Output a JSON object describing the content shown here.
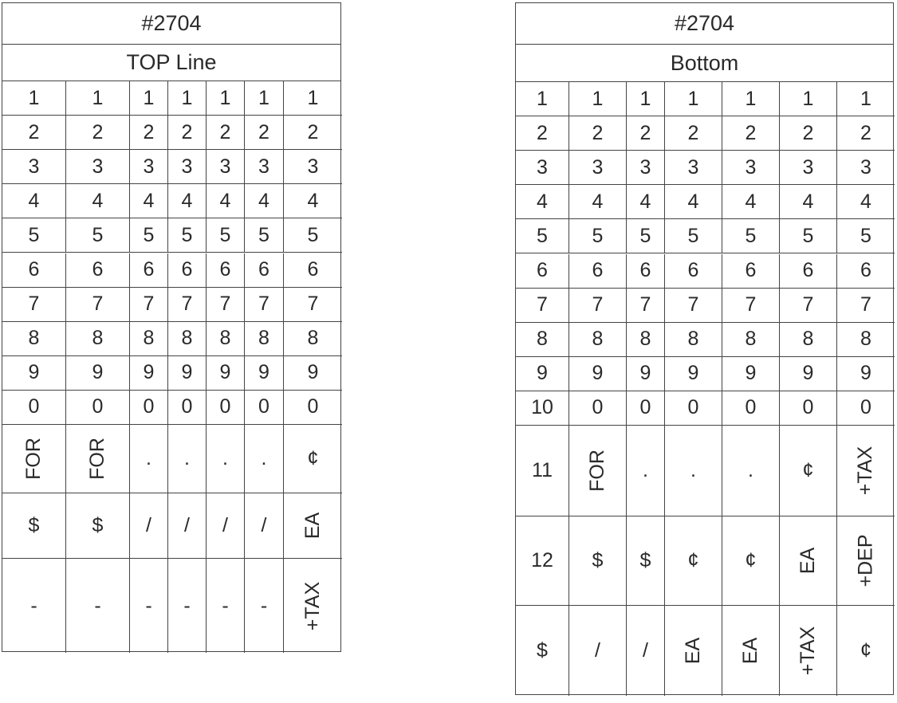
{
  "left_table": {
    "title": "#2704",
    "subtitle": "TOP Line",
    "rows": [
      [
        "1",
        "1",
        "1",
        "1",
        "1",
        "1",
        "1"
      ],
      [
        "2",
        "2",
        "2",
        "2",
        "2",
        "2",
        "2"
      ],
      [
        "3",
        "3",
        "3",
        "3",
        "3",
        "3",
        "3"
      ],
      [
        "4",
        "4",
        "4",
        "4",
        "4",
        "4",
        "4"
      ],
      [
        "5",
        "5",
        "5",
        "5",
        "5",
        "5",
        "5"
      ],
      [
        "6",
        "6",
        "6",
        "6",
        "6",
        "6",
        "6"
      ],
      [
        "7",
        "7",
        "7",
        "7",
        "7",
        "7",
        "7"
      ],
      [
        "8",
        "8",
        "8",
        "8",
        "8",
        "8",
        "8"
      ],
      [
        "9",
        "9",
        "9",
        "9",
        "9",
        "9",
        "9"
      ],
      [
        "0",
        "0",
        "0",
        "0",
        "0",
        "0",
        "0"
      ],
      [
        "FOR",
        "FOR",
        ".",
        ".",
        ".",
        ".",
        "¢"
      ],
      [
        "$",
        "$",
        "/",
        "/",
        "/",
        "/",
        "EA"
      ],
      [
        "-",
        "-",
        "-",
        "-",
        "-",
        "-",
        "+TAX"
      ]
    ]
  },
  "right_table": {
    "title": "#2704",
    "subtitle": "Bottom",
    "rows": [
      [
        "1",
        "1",
        "1",
        "1",
        "1",
        "1",
        "1"
      ],
      [
        "2",
        "2",
        "2",
        "2",
        "2",
        "2",
        "2"
      ],
      [
        "3",
        "3",
        "3",
        "3",
        "3",
        "3",
        "3"
      ],
      [
        "4",
        "4",
        "4",
        "4",
        "4",
        "4",
        "4"
      ],
      [
        "5",
        "5",
        "5",
        "5",
        "5",
        "5",
        "5"
      ],
      [
        "6",
        "6",
        "6",
        "6",
        "6",
        "6",
        "6"
      ],
      [
        "7",
        "7",
        "7",
        "7",
        "7",
        "7",
        "7"
      ],
      [
        "8",
        "8",
        "8",
        "8",
        "8",
        "8",
        "8"
      ],
      [
        "9",
        "9",
        "9",
        "9",
        "9",
        "9",
        "9"
      ],
      [
        "10",
        "0",
        "0",
        "0",
        "0",
        "0",
        "0"
      ],
      [
        "11",
        "FOR",
        ".",
        ".",
        ".",
        "¢",
        "+TAX"
      ],
      [
        "12",
        "$",
        "$",
        "¢",
        "¢",
        "EA",
        "+DEP"
      ],
      [
        "$",
        "/",
        "/",
        "EA",
        "EA",
        "+TAX",
        "¢"
      ]
    ]
  }
}
